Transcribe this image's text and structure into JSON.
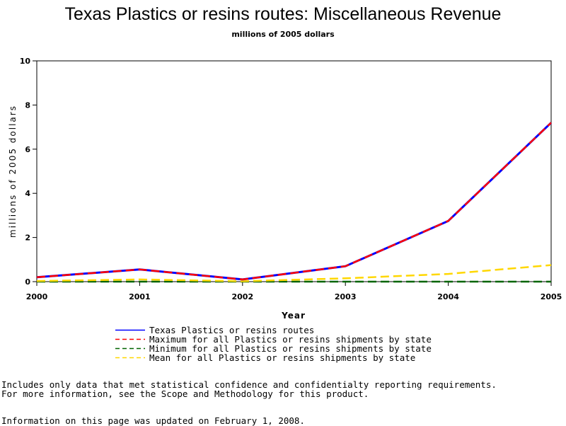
{
  "chart_data": {
    "type": "line",
    "title": "Texas Plastics or resins routes: Miscellaneous Revenue",
    "subtitle": "millions of 2005 dollars",
    "xlabel": "Year",
    "ylabel": "millions of 2005 dollars",
    "x": [
      "2000",
      "2001",
      "2002",
      "2003",
      "2004",
      "2005"
    ],
    "ylim": [
      0,
      10
    ],
    "yticks": [
      0,
      2,
      4,
      6,
      8,
      10
    ],
    "grid": false,
    "legend_position": "bottom",
    "series": [
      {
        "name": "Texas Plastics or resins routes",
        "values": [
          0.2,
          0.55,
          0.1,
          0.7,
          2.75,
          7.2
        ],
        "color": "#0000ff",
        "dash": "solid"
      },
      {
        "name": "Maximum for all Plastics or resins shipments by state",
        "values": [
          0.2,
          0.55,
          0.1,
          0.7,
          2.75,
          7.2
        ],
        "color": "#ff0000",
        "dash": "dashed"
      },
      {
        "name": "Minimum for all Plastics or resins shipments by state",
        "values": [
          0.0,
          0.0,
          0.0,
          0.0,
          0.0,
          0.0
        ],
        "color": "#006400",
        "dash": "dashed"
      },
      {
        "name": "Mean for all Plastics or resins shipments by state",
        "values": [
          0.03,
          0.1,
          0.02,
          0.15,
          0.35,
          0.75
        ],
        "color": "#ffd700",
        "dash": "dashed"
      }
    ]
  },
  "footnotes": {
    "line1": "Includes only data that met statistical confidence and confidentialty reporting requirements.",
    "line2": "For more information, see the Scope and Methodology for this product.",
    "updated": "Information on this page was updated on February 1, 2008."
  }
}
